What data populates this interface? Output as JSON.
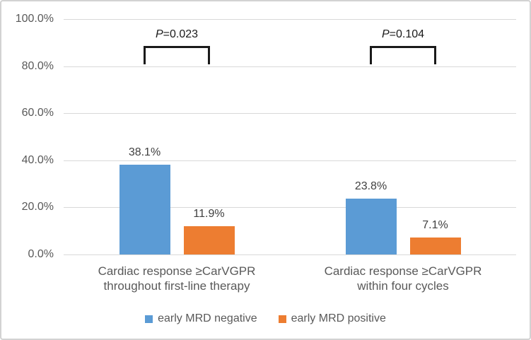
{
  "colors": {
    "series_negative": "#5B9BD5",
    "series_positive": "#ED7D31",
    "gridline": "#D9D9D9",
    "axis_text": "#595959",
    "category_text": "#595959",
    "data_label_text": "#404040",
    "bracket": "#1A1A1A",
    "border": "#D2D2D2",
    "background": "#FFFFFF"
  },
  "chart_data": {
    "type": "bar",
    "categories": [
      {
        "line1": "Cardiac response ≥CarVGPR",
        "line2": "throughout first-line therapy"
      },
      {
        "line1": "Cardiac response ≥CarVGPR",
        "line2": "within four cycles"
      }
    ],
    "series": [
      {
        "name": "early MRD negative",
        "color": "#5B9BD5",
        "values": [
          38.1,
          23.8
        ],
        "value_labels": [
          "38.1%",
          "23.8%"
        ]
      },
      {
        "name": "early MRD positive",
        "color": "#ED7D31",
        "values": [
          11.9,
          7.1
        ],
        "value_labels": [
          "11.9%",
          "7.1%"
        ]
      }
    ],
    "y_axis": {
      "tick_labels": [
        "100.0%",
        "80.0%",
        "60.0%",
        "40.0%",
        "20.0%",
        "0.0%"
      ],
      "tick_values": [
        100,
        80,
        60,
        40,
        20,
        0
      ],
      "ylim": [
        0,
        100
      ]
    },
    "grid": true,
    "legend_position": "bottom",
    "annotations": [
      {
        "text": "P=0.023",
        "p_prefix": "P",
        "p_rest": "=0.023",
        "group_index": 0
      },
      {
        "text": "P=0.104",
        "p_prefix": "P",
        "p_rest": "=0.104",
        "group_index": 1
      }
    ]
  }
}
